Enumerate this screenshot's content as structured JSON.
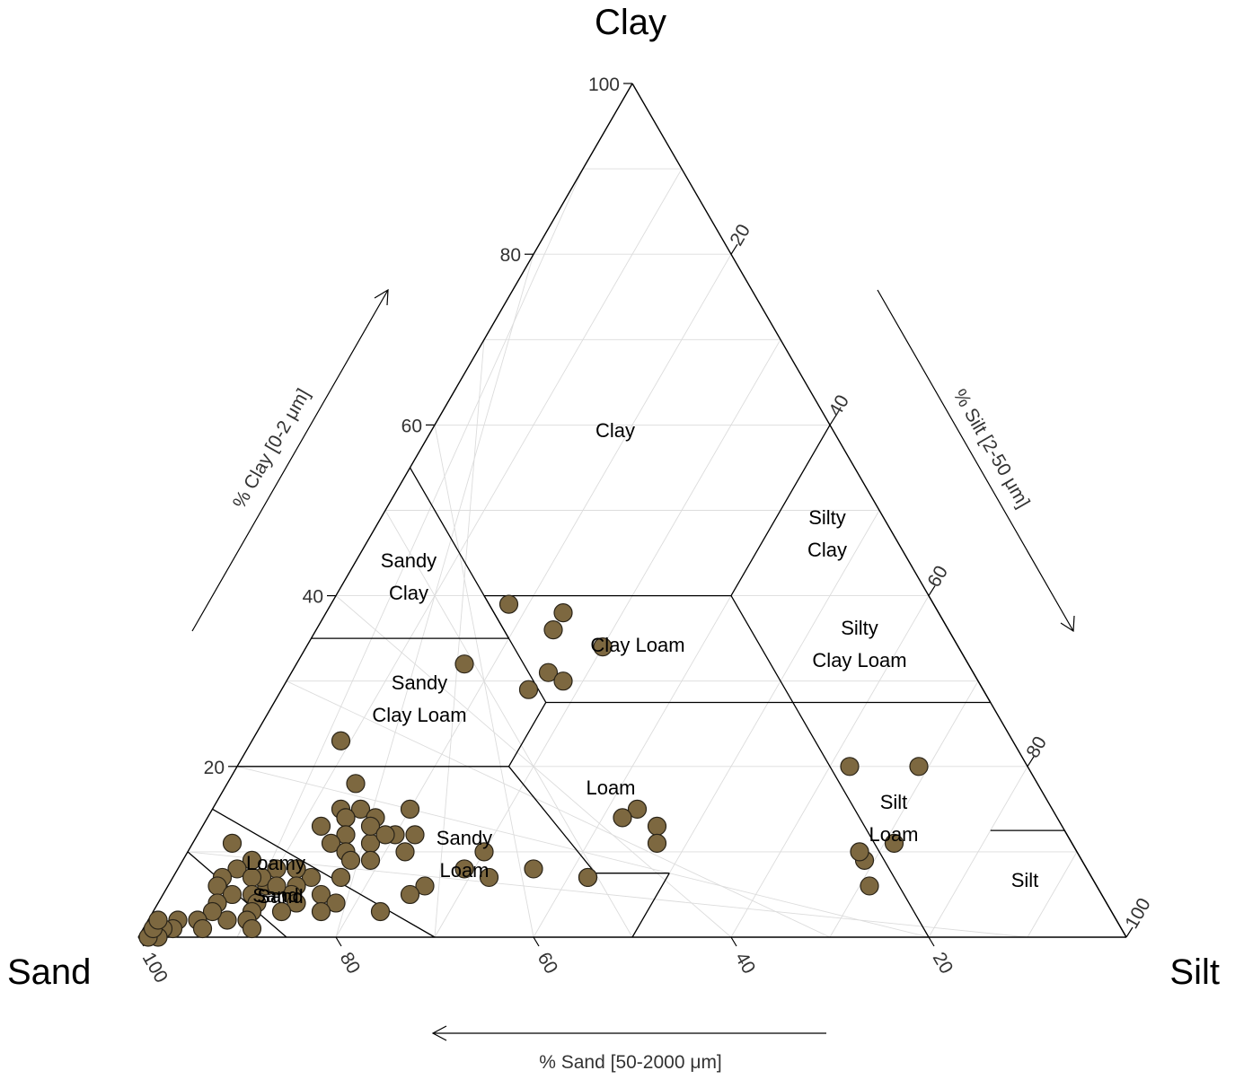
{
  "chart_data": {
    "type": "scatter",
    "subtype": "ternary soil texture triangle",
    "corner_labels": {
      "top": "Clay",
      "left": "Sand",
      "right": "Silt"
    },
    "axis_titles": {
      "clay": "% Clay [0-2 μm]",
      "silt": "% Silt [2-50 μm]",
      "sand": "% Sand [50-2000 μm]"
    },
    "ticks": {
      "clay": [
        "20",
        "40",
        "60",
        "80",
        "100"
      ],
      "silt": [
        "20",
        "40",
        "60",
        "80",
        "100"
      ],
      "sand": [
        "100",
        "80",
        "60",
        "40",
        "20"
      ]
    },
    "texture_classes": [
      {
        "name": "Clay",
        "lines": [
          "Clay"
        ]
      },
      {
        "name": "Silty Clay",
        "lines": [
          "Silty",
          "Clay"
        ]
      },
      {
        "name": "Sandy Clay",
        "lines": [
          "Sandy",
          "Clay"
        ]
      },
      {
        "name": "Clay Loam",
        "lines": [
          "Clay Loam"
        ]
      },
      {
        "name": "Silty Clay Loam",
        "lines": [
          "Silty",
          "Clay Loam"
        ]
      },
      {
        "name": "Sandy Clay Loam",
        "lines": [
          "Sandy",
          "Clay Loam"
        ]
      },
      {
        "name": "Loam",
        "lines": [
          "Loam"
        ]
      },
      {
        "name": "Silt Loam",
        "lines": [
          "Silt",
          "Loam"
        ]
      },
      {
        "name": "Sandy Loam",
        "lines": [
          "Sandy",
          "Loam"
        ]
      },
      {
        "name": "Silt",
        "lines": [
          "Silt"
        ]
      },
      {
        "name": "Loamy Sand",
        "lines": [
          "Loamy",
          "Sand"
        ]
      },
      {
        "name": "Sand",
        "lines": [
          "Sand"
        ]
      }
    ],
    "grid": true,
    "point_color": "#7d6840",
    "points_clay_silt": [
      [
        39,
        18
      ],
      [
        38,
        24
      ],
      [
        36,
        24
      ],
      [
        34,
        30
      ],
      [
        31,
        26
      ],
      [
        29,
        25
      ],
      [
        30,
        28
      ],
      [
        32,
        17
      ],
      [
        23,
        9
      ],
      [
        18,
        13
      ],
      [
        15,
        43
      ],
      [
        14,
        42
      ],
      [
        13,
        46
      ],
      [
        11,
        47
      ],
      [
        20,
        62
      ],
      [
        20,
        69
      ],
      [
        15,
        20
      ],
      [
        12,
        20
      ],
      [
        12,
        22
      ],
      [
        10,
        22
      ],
      [
        10,
        30
      ],
      [
        8,
        36
      ],
      [
        8,
        29
      ],
      [
        6,
        26
      ],
      [
        5,
        25
      ],
      [
        3,
        23
      ],
      [
        7,
        42
      ],
      [
        7,
        32
      ],
      [
        7,
        42
      ],
      [
        11,
        71
      ],
      [
        9,
        69
      ],
      [
        10,
        68
      ],
      [
        6,
        71
      ],
      [
        11,
        4
      ],
      [
        9,
        7
      ],
      [
        8,
        12
      ],
      [
        7,
        14
      ],
      [
        7,
        17
      ],
      [
        6,
        10
      ],
      [
        15,
        13
      ],
      [
        14,
        14
      ],
      [
        15,
        15
      ],
      [
        14,
        14
      ],
      [
        13,
        12
      ],
      [
        12,
        15
      ],
      [
        11,
        14
      ],
      [
        10,
        16
      ],
      [
        11,
        18
      ],
      [
        14,
        17
      ],
      [
        13,
        17
      ],
      [
        12,
        19
      ],
      [
        9,
        19
      ],
      [
        9,
        17
      ],
      [
        8,
        12
      ],
      [
        8,
        10
      ],
      [
        7,
        9
      ],
      [
        6,
        13
      ],
      [
        5,
        13
      ],
      [
        5,
        16
      ],
      [
        4,
        14
      ],
      [
        4,
        18
      ],
      [
        3,
        17
      ],
      [
        8,
        6
      ],
      [
        7,
        8
      ],
      [
        6,
        11
      ],
      [
        5,
        9
      ],
      [
        4,
        10
      ],
      [
        3,
        10
      ],
      [
        3,
        13
      ],
      [
        2,
        10
      ],
      [
        2,
        8
      ],
      [
        1,
        11
      ],
      [
        7,
        5
      ],
      [
        6,
        5
      ],
      [
        5,
        7
      ],
      [
        4,
        6
      ],
      [
        3,
        6
      ],
      [
        2,
        5
      ],
      [
        1,
        6
      ],
      [
        2,
        3
      ],
      [
        1,
        3
      ],
      [
        1,
        2
      ],
      [
        0,
        2
      ],
      [
        0,
        1
      ],
      [
        1,
        1
      ],
      [
        2,
        1
      ]
    ]
  }
}
